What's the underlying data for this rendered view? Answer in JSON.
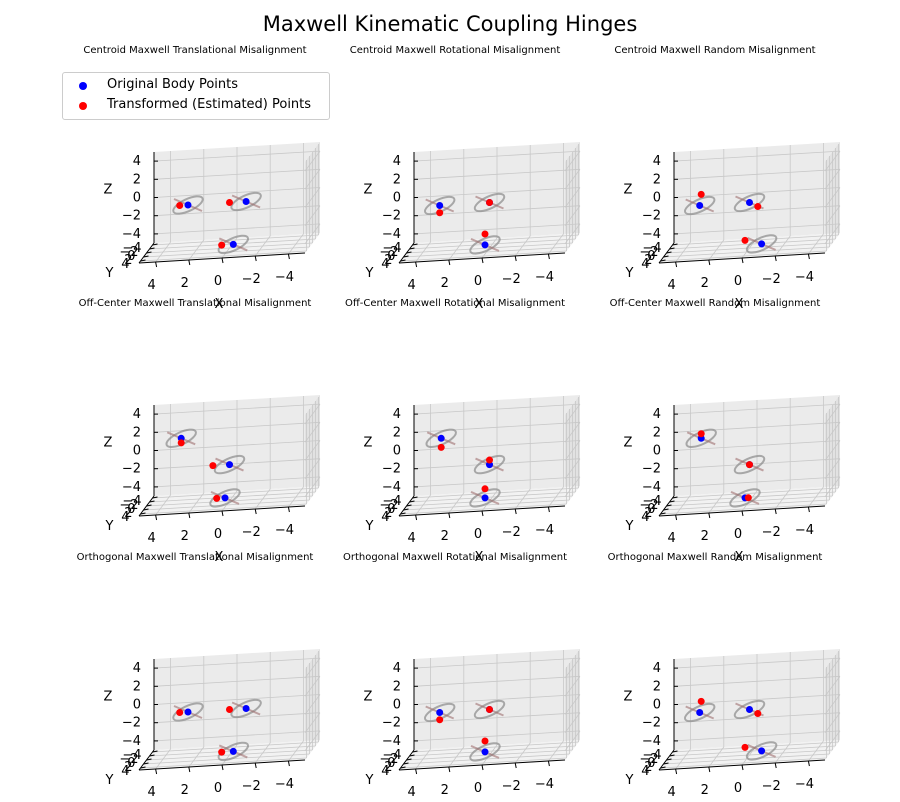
{
  "title": "Maxwell Kinematic Coupling Hinges",
  "legend": {
    "items": [
      {
        "label": "Original Body Points",
        "color": "#0000ff"
      },
      {
        "label": "Transformed (Estimated) Points",
        "color": "#ff0000"
      }
    ]
  },
  "axes_labels": {
    "x": "X",
    "y": "Y",
    "z": "Z"
  },
  "ticks": {
    "x": [
      "4",
      "2",
      "0",
      "−2",
      "−4"
    ],
    "y": [
      "−4",
      "−2",
      "0",
      "2",
      "4"
    ],
    "z": [
      "4",
      "2",
      "0",
      "−2",
      "−4"
    ]
  },
  "chart_data": [
    {
      "type": "scatter3d",
      "title": "Centroid Maxwell Translational Misalignment",
      "xlabel": "X",
      "ylabel": "Y",
      "zlabel": "Z",
      "xlim": [
        -5,
        5
      ],
      "ylim": [
        -5,
        5
      ],
      "zlim": [
        -5,
        5
      ],
      "series": [
        {
          "name": "Original Body Points",
          "color": "#0000ff",
          "points": [
            [
              2.5,
              0,
              0
            ],
            [
              -1,
              0,
              0
            ],
            [
              -0.5,
              3,
              -4
            ]
          ]
        },
        {
          "name": "Transformed (Estimated) Points",
          "color": "#ff0000",
          "points": [
            [
              3,
              0,
              0
            ],
            [
              0,
              0,
              0
            ],
            [
              0.2,
              3,
              -4
            ]
          ]
        }
      ]
    },
    {
      "type": "scatter3d",
      "title": "Centroid Maxwell Rotational Misalignment",
      "xlabel": "X",
      "ylabel": "Y",
      "zlabel": "Z",
      "xlim": [
        -5,
        5
      ],
      "ylim": [
        -5,
        5
      ],
      "zlim": [
        -5,
        5
      ],
      "series": [
        {
          "name": "Original Body Points",
          "color": "#0000ff",
          "points": [
            [
              3,
              0,
              0
            ],
            [
              0,
              0,
              0
            ],
            [
              0,
              3,
              -4
            ]
          ]
        },
        {
          "name": "Transformed (Estimated) Points",
          "color": "#ff0000",
          "points": [
            [
              3,
              0,
              -0.8
            ],
            [
              0,
              0,
              0
            ],
            [
              0,
              3,
              -2.8
            ]
          ]
        }
      ]
    },
    {
      "type": "scatter3d",
      "title": "Centroid Maxwell Random Misalignment",
      "xlabel": "X",
      "ylabel": "Y",
      "zlabel": "Z",
      "xlim": [
        -5,
        5
      ],
      "ylim": [
        -5,
        5
      ],
      "zlim": [
        -5,
        5
      ],
      "series": [
        {
          "name": "Original Body Points",
          "color": "#0000ff",
          "points": [
            [
              3,
              0,
              0
            ],
            [
              0,
              0,
              0
            ],
            [
              -1,
              3,
              -4
            ]
          ]
        },
        {
          "name": "Transformed (Estimated) Points",
          "color": "#ff0000",
          "points": [
            [
              3,
              -1,
              1
            ],
            [
              -0.5,
              0,
              -0.5
            ],
            [
              0,
              3,
              -3.5
            ]
          ]
        }
      ]
    },
    {
      "type": "scatter3d",
      "title": "Off-Center Maxwell Translational Misalignment",
      "xlabel": "X",
      "ylabel": "Y",
      "zlabel": "Z",
      "xlim": [
        -5,
        5
      ],
      "ylim": [
        -5,
        5
      ],
      "zlim": [
        -5,
        5
      ],
      "series": [
        {
          "name": "Original Body Points",
          "color": "#0000ff",
          "points": [
            [
              3,
              -1,
              2
            ],
            [
              0,
              0,
              -1
            ],
            [
              0,
              3,
              -4
            ]
          ]
        },
        {
          "name": "Transformed (Estimated) Points",
          "color": "#ff0000",
          "points": [
            [
              3,
              -1,
              1.5
            ],
            [
              1,
              0,
              -1
            ],
            [
              0.5,
              3,
              -4
            ]
          ]
        }
      ]
    },
    {
      "type": "scatter3d",
      "title": "Off-Center Maxwell Rotational Misalignment",
      "xlabel": "X",
      "ylabel": "Y",
      "zlabel": "Z",
      "xlim": [
        -5,
        5
      ],
      "ylim": [
        -5,
        5
      ],
      "zlim": [
        -5,
        5
      ],
      "series": [
        {
          "name": "Original Body Points",
          "color": "#0000ff",
          "points": [
            [
              3,
              -1,
              2
            ],
            [
              0,
              0,
              -1
            ],
            [
              0,
              3,
              -4
            ]
          ]
        },
        {
          "name": "Transformed (Estimated) Points",
          "color": "#ff0000",
          "points": [
            [
              3,
              -1,
              1
            ],
            [
              0,
              0,
              -0.5
            ],
            [
              0,
              3,
              -3
            ]
          ]
        }
      ]
    },
    {
      "type": "scatter3d",
      "title": "Off-Center Maxwell Random Misalignment",
      "xlabel": "X",
      "ylabel": "Y",
      "zlabel": "Z",
      "xlim": [
        -5,
        5
      ],
      "ylim": [
        -5,
        5
      ],
      "zlim": [
        -5,
        5
      ],
      "series": [
        {
          "name": "Original Body Points",
          "color": "#0000ff",
          "points": [
            [
              3,
              -1,
              2
            ],
            [
              0,
              0,
              -1
            ],
            [
              0,
              3,
              -4
            ]
          ]
        },
        {
          "name": "Transformed (Estimated) Points",
          "color": "#ff0000",
          "points": [
            [
              3,
              -1,
              2.5
            ],
            [
              0,
              0,
              -1
            ],
            [
              -0.2,
              3,
              -4
            ]
          ]
        }
      ]
    },
    {
      "type": "scatter3d",
      "title": "Orthogonal Maxwell Translational Misalignment",
      "xlabel": "X",
      "ylabel": "Y",
      "zlabel": "Z",
      "xlim": [
        -5,
        5
      ],
      "ylim": [
        -5,
        5
      ],
      "zlim": [
        -5,
        5
      ],
      "series": [
        {
          "name": "Original Body Points",
          "color": "#0000ff",
          "points": [
            [
              2.5,
              0,
              0
            ],
            [
              -1,
              0,
              0
            ],
            [
              -0.5,
              3,
              -4
            ]
          ]
        },
        {
          "name": "Transformed (Estimated) Points",
          "color": "#ff0000",
          "points": [
            [
              3,
              0,
              0
            ],
            [
              0,
              0,
              0
            ],
            [
              0.2,
              3,
              -4
            ]
          ]
        }
      ]
    },
    {
      "type": "scatter3d",
      "title": "Orthogonal Maxwell Rotational Misalignment",
      "xlabel": "X",
      "ylabel": "Y",
      "zlabel": "Z",
      "xlim": [
        -5,
        5
      ],
      "ylim": [
        -5,
        5
      ],
      "zlim": [
        -5,
        5
      ],
      "series": [
        {
          "name": "Original Body Points",
          "color": "#0000ff",
          "points": [
            [
              3,
              0,
              0
            ],
            [
              0,
              0,
              0
            ],
            [
              0,
              3,
              -4
            ]
          ]
        },
        {
          "name": "Transformed (Estimated) Points",
          "color": "#ff0000",
          "points": [
            [
              3,
              0,
              -0.8
            ],
            [
              0,
              0,
              0
            ],
            [
              0,
              3,
              -2.8
            ]
          ]
        }
      ]
    },
    {
      "type": "scatter3d",
      "title": "Orthogonal Maxwell Random Misalignment",
      "xlabel": "X",
      "ylabel": "Y",
      "zlabel": "Z",
      "xlim": [
        -5,
        5
      ],
      "ylim": [
        -5,
        5
      ],
      "zlim": [
        -5,
        5
      ],
      "series": [
        {
          "name": "Original Body Points",
          "color": "#0000ff",
          "points": [
            [
              3,
              0,
              0
            ],
            [
              0,
              0,
              0
            ],
            [
              -1,
              3,
              -4
            ]
          ]
        },
        {
          "name": "Transformed (Estimated) Points",
          "color": "#ff0000",
          "points": [
            [
              3,
              -1,
              1
            ],
            [
              -0.5,
              0,
              -0.5
            ],
            [
              0,
              3,
              -3.5
            ]
          ]
        }
      ]
    }
  ]
}
